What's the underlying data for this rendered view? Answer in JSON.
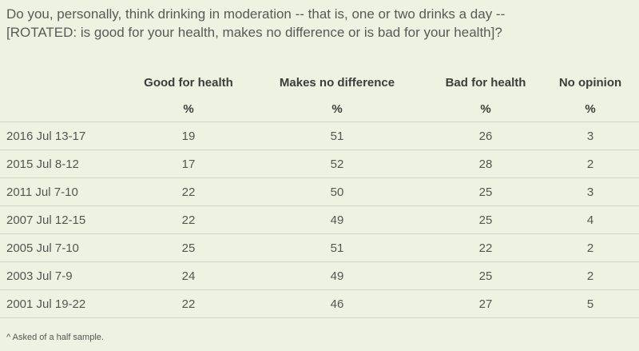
{
  "chart_data": {
    "type": "table",
    "title": "Do you, personally, think drinking in moderation -- that is, one or two drinks a day -- [ROTATED: is good for your health, makes no difference or is bad for your health]?",
    "columns": [
      "Good for health",
      "Makes no difference",
      "Bad for health",
      "No opinion"
    ],
    "units": [
      "%",
      "%",
      "%",
      "%"
    ],
    "rows": [
      {
        "label": "2016 Jul 13-17",
        "values": [
          "19",
          "51",
          "26",
          "3"
        ]
      },
      {
        "label": "2015 Jul 8-12",
        "values": [
          "17",
          "52",
          "28",
          "2"
        ]
      },
      {
        "label": "2011 Jul 7-10",
        "values": [
          "22",
          "50",
          "25",
          "3"
        ]
      },
      {
        "label": "2007 Jul 12-15",
        "values": [
          "22",
          "49",
          "25",
          "4"
        ]
      },
      {
        "label": "2005 Jul 7-10",
        "values": [
          "25",
          "51",
          "22",
          "2"
        ]
      },
      {
        "label": "2003 Jul 7-9",
        "values": [
          "24",
          "49",
          "25",
          "2"
        ]
      },
      {
        "label": "2001 Jul 19-22",
        "values": [
          "22",
          "46",
          "27",
          "5"
        ]
      }
    ],
    "footnote": "^ Asked of a half sample."
  }
}
